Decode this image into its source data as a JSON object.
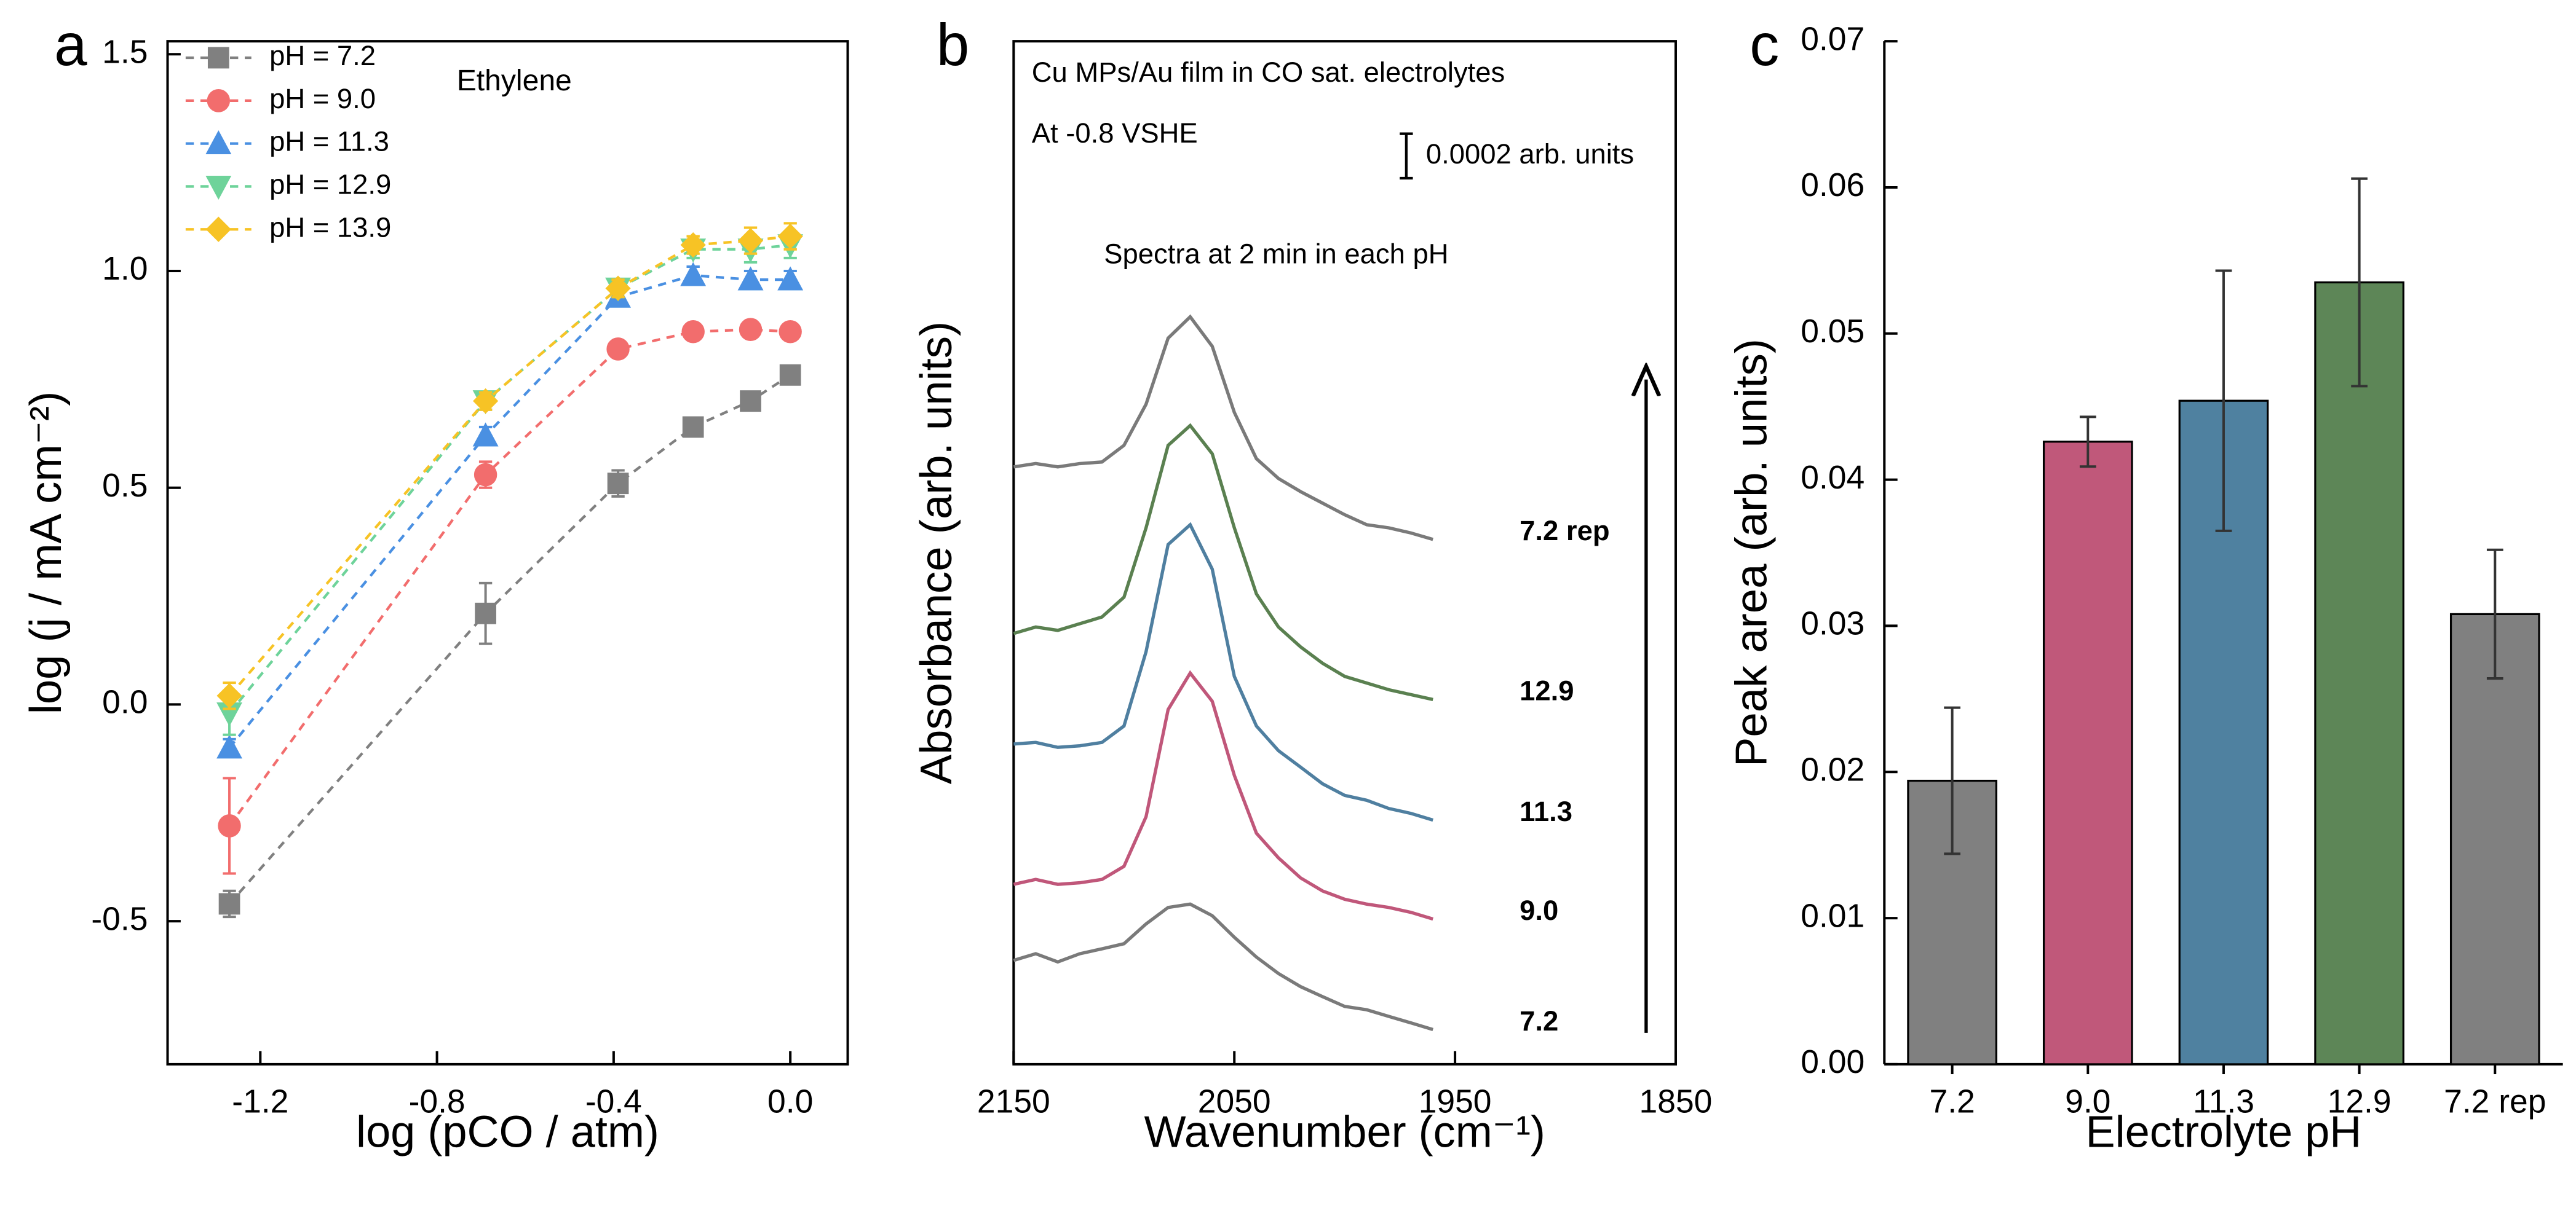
{
  "chart_data": [
    {
      "type": "line",
      "panel_label": "a",
      "xlabel": "log (pCO / atm)",
      "ylabel": "log (j / mA cm⁻²)",
      "annotations": [
        "Ethylene"
      ],
      "x": [
        -1.27,
        -0.69,
        -0.39,
        -0.22,
        -0.09,
        0.0
      ],
      "xlim": [
        -1.41,
        0.13
      ],
      "ylim": [
        -0.83,
        1.53
      ],
      "xticks": [
        -1.2,
        -0.8,
        -0.4,
        {
          "value": 0.0,
          "label": "0.0"
        }
      ],
      "yticks": [
        -0.5,
        {
          "value": 0.0,
          "label": "0.0"
        },
        0.5,
        {
          "value": 1.0,
          "label": "1.0"
        },
        1.5
      ],
      "legend": "upper left",
      "linestyle": "dashed",
      "series": [
        {
          "name": "pH = 7.2",
          "color": "#808080",
          "marker": "square",
          "values": [
            -0.46,
            0.21,
            0.51,
            0.64,
            0.7,
            0.76
          ],
          "errors": [
            0.03,
            0.07,
            0.03,
            0.02,
            0.01,
            0.01
          ]
        },
        {
          "name": "pH = 9.0",
          "color": "#f26d6d",
          "marker": "circle",
          "values": [
            -0.28,
            0.53,
            0.82,
            0.86,
            0.865,
            0.86
          ],
          "errors": [
            0.11,
            0.03,
            0.01,
            0.01,
            0.01,
            0.01
          ]
        },
        {
          "name": "pH = 11.3",
          "color": "#4a90e2",
          "marker": "triangle-up",
          "values": [
            -0.1,
            0.62,
            0.94,
            0.99,
            0.98,
            0.98
          ],
          "errors": [
            0.02,
            0.02,
            0.02,
            0.02,
            0.02,
            0.02
          ]
        },
        {
          "name": "pH = 12.9",
          "color": "#6ed39a",
          "marker": "triangle-down",
          "values": [
            -0.02,
            0.7,
            0.96,
            1.05,
            1.05,
            1.06
          ],
          "errors": [
            0.05,
            0.02,
            0.02,
            0.02,
            0.03,
            0.03
          ]
        },
        {
          "name": "pH = 13.9",
          "color": "#f7c325",
          "marker": "diamond",
          "values": [
            0.02,
            0.7,
            0.96,
            1.06,
            1.07,
            1.08
          ],
          "errors": [
            0.03,
            0.02,
            0.02,
            0.02,
            0.03,
            0.03
          ]
        }
      ]
    },
    {
      "type": "line",
      "panel_label": "b",
      "xlabel": "Wavenumber (cm⁻¹)",
      "ylabel": "Absorbance (arb. units)",
      "annotations": [
        "Cu MPs/Au film in CO sat. electrolytes",
        "At -0.8 VSHE",
        "Spectra at 2 min in each pH"
      ],
      "scale_bar": {
        "value": 0.0002,
        "label": "0.0002 arb. units"
      },
      "series_labels": "end",
      "x": [
        2150,
        2140,
        2130,
        2120,
        2110,
        2100,
        2090,
        2080,
        2070,
        2060,
        2050,
        2040,
        2030,
        2020,
        2010,
        2000,
        1990,
        1980,
        1970,
        1960
      ],
      "xlim": [
        2150,
        1850
      ],
      "ylim": [
        0,
        0.0046
      ],
      "xticks": [
        2150,
        2050,
        1950,
        1850
      ],
      "series": [
        {
          "name": "7.2",
          "color": "#7a7a7a",
          "values": [
            0.000467,
            0.000497,
            0.00046,
            0.000497,
            0.000519,
            0.000542,
            0.000631,
            0.000705,
            0.00072,
            0.000668,
            0.000571,
            0.000482,
            0.000408,
            0.000349,
            0.000304,
            0.00026,
            0.000245,
            0.000215,
            0.000186,
            0.000156
          ]
        },
        {
          "name": "9.0",
          "color": "#c0577a",
          "values": [
            0.000809,
            0.000831,
            0.000809,
            0.000816,
            0.000831,
            0.00089,
            0.001113,
            0.001595,
            0.001759,
            0.001632,
            0.001299,
            0.001039,
            0.000928,
            0.000838,
            0.000779,
            0.000742,
            0.00072,
            0.000705,
            0.000683,
            0.000653
          ]
        },
        {
          "name": "11.3",
          "color": "#4f7fa0",
          "values": [
            0.00144,
            0.001447,
            0.001425,
            0.001432,
            0.001447,
            0.001521,
            0.001855,
            0.002337,
            0.002426,
            0.002226,
            0.001744,
            0.001521,
            0.00141,
            0.001336,
            0.001261,
            0.001209,
            0.001187,
            0.00115,
            0.001128,
            0.001098
          ]
        },
        {
          "name": "12.9",
          "color": "#5a8050",
          "values": [
            0.001937,
            0.001966,
            0.001951,
            0.001981,
            0.002011,
            0.0021,
            0.002412,
            0.002783,
            0.002872,
            0.002745,
            0.002412,
            0.002115,
            0.001966,
            0.001877,
            0.001803,
            0.001744,
            0.001714,
            0.001684,
            0.001662,
            0.00164
          ]
        },
        {
          "name": "7.2 rep",
          "color": "#7a7a7a",
          "values": [
            0.002686,
            0.002701,
            0.002686,
            0.002701,
            0.002708,
            0.002783,
            0.002968,
            0.003265,
            0.003361,
            0.003228,
            0.002931,
            0.002723,
            0.002634,
            0.002575,
            0.002523,
            0.002471,
            0.002426,
            0.002412,
            0.002389,
            0.00236
          ]
        }
      ]
    },
    {
      "type": "bar",
      "panel_label": "c",
      "xlabel": "Electrolyte pH",
      "ylabel": "Peak area (arb. units)",
      "categories": [
        "7.2",
        "9.0",
        "11.3",
        "12.9",
        "7.2 rep"
      ],
      "values": [
        0.0194,
        0.0426,
        0.0454,
        0.0535,
        0.0308
      ],
      "errors": [
        0.005,
        0.0017,
        0.0089,
        0.0071,
        0.0044
      ],
      "colors": [
        "#808080",
        "#c0587a",
        "#4f81a0",
        "#5d8657",
        "#808080"
      ],
      "ylim": [
        0,
        0.07
      ],
      "yticks": [
        {
          "value": 0,
          "label": "0.00"
        },
        0.01,
        0.02,
        0.03,
        0.04,
        0.05,
        0.06,
        0.07
      ]
    }
  ]
}
